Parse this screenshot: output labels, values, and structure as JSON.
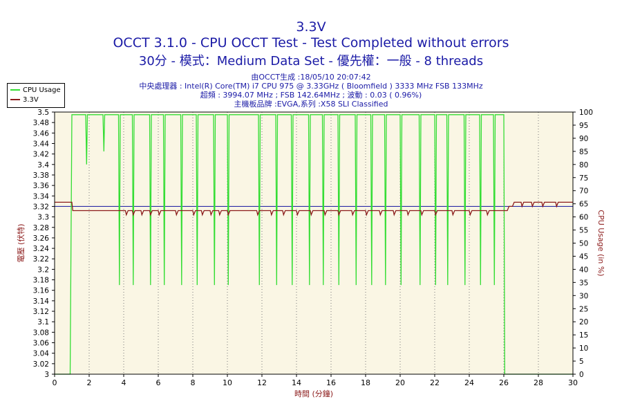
{
  "header": {
    "title_line1": "3.3V",
    "title_line2": "OCCT 3.1.0 - CPU OCCT Test - Test Completed without errors",
    "title_line3": "30分 - 模式：Medium Data Set - 優先權：一般 - 8 threads"
  },
  "info": {
    "line1": "由OCCT生成 :18/05/10 20:07:42",
    "line2": "中央處理器 : Intel(R) Core(TM) i7 CPU 975 @ 3.33GHz ( Bloomfield ) 3333 MHz FSB 133MHz",
    "line3": "超頻 : 3994.07 MHz ; FSB 142.64MHz ; 波動 : 0.03 ( 0.96%)",
    "line4": "主機板品牌 :EVGA,系列 :X58 SLI Classified"
  },
  "colors": {
    "plot_background": "#faf6e4",
    "cpu_usage": "#33dd33",
    "voltage": "#8b1a1a",
    "reference_line": "#2a2aa6",
    "title_text": "#1a1aa6"
  },
  "chart_data": {
    "type": "line",
    "xlabel": "時間 (分鐘)",
    "ylabel_left": "電壓 (伏特)",
    "ylabel_right": "CPU Usage (in %)",
    "xlim": [
      0,
      30
    ],
    "ylim_left": [
      3.0,
      3.5
    ],
    "ylim_right": [
      0,
      100
    ],
    "x_ticks": [
      "0",
      "2",
      "4",
      "6",
      "8",
      "10",
      "12",
      "14",
      "16",
      "18",
      "20",
      "22",
      "24",
      "26",
      "28",
      "30"
    ],
    "y_left_ticks": [
      "3",
      "3.02",
      "3.04",
      "3.06",
      "3.08",
      "3.1",
      "3.12",
      "3.14",
      "3.16",
      "3.18",
      "3.2",
      "3.22",
      "3.24",
      "3.26",
      "3.28",
      "3.3",
      "3.32",
      "3.34",
      "3.36",
      "3.38",
      "3.4",
      "3.42",
      "3.44",
      "3.46",
      "3.48",
      "3.5"
    ],
    "y_right_ticks": [
      "0",
      "5",
      "10",
      "15",
      "20",
      "25",
      "30",
      "35",
      "40",
      "45",
      "50",
      "55",
      "60",
      "65",
      "70",
      "75",
      "80",
      "85",
      "90",
      "95",
      "100"
    ],
    "grid": "vertical dotted",
    "legend_position": "top-left",
    "reference_line": {
      "axis": "left",
      "value": 3.32
    },
    "series": [
      {
        "name": "CPU Usage",
        "axis": "right",
        "baseline": 99,
        "points": [
          [
            0,
            0
          ],
          [
            0.9,
            0
          ],
          [
            1.0,
            99
          ],
          [
            1.8,
            99
          ],
          [
            1.85,
            80
          ],
          [
            1.9,
            99
          ],
          [
            2.8,
            99
          ],
          [
            2.85,
            85
          ],
          [
            2.9,
            99
          ],
          [
            3.7,
            99
          ],
          [
            3.75,
            34
          ],
          [
            3.8,
            99
          ],
          [
            4.5,
            99
          ],
          [
            4.55,
            34
          ],
          [
            4.6,
            99
          ],
          [
            5.5,
            99
          ],
          [
            5.55,
            34
          ],
          [
            5.6,
            99
          ],
          [
            6.3,
            99
          ],
          [
            6.35,
            34
          ],
          [
            6.4,
            99
          ],
          [
            7.3,
            99
          ],
          [
            7.35,
            34
          ],
          [
            7.4,
            99
          ],
          [
            8.2,
            99
          ],
          [
            8.25,
            34
          ],
          [
            8.3,
            99
          ],
          [
            9.2,
            99
          ],
          [
            9.25,
            34
          ],
          [
            9.3,
            99
          ],
          [
            10.0,
            99
          ],
          [
            10.05,
            34
          ],
          [
            10.1,
            99
          ],
          [
            11.8,
            99
          ],
          [
            11.85,
            34
          ],
          [
            11.9,
            99
          ],
          [
            12.8,
            99
          ],
          [
            12.85,
            34
          ],
          [
            12.9,
            99
          ],
          [
            13.7,
            99
          ],
          [
            13.75,
            34
          ],
          [
            13.8,
            99
          ],
          [
            14.7,
            99
          ],
          [
            14.75,
            34
          ],
          [
            14.8,
            99
          ],
          [
            15.5,
            99
          ],
          [
            15.55,
            34
          ],
          [
            15.6,
            99
          ],
          [
            16.4,
            99
          ],
          [
            16.45,
            34
          ],
          [
            16.5,
            99
          ],
          [
            17.4,
            99
          ],
          [
            17.45,
            34
          ],
          [
            17.5,
            99
          ],
          [
            18.3,
            99
          ],
          [
            18.35,
            34
          ],
          [
            18.4,
            99
          ],
          [
            19.1,
            99
          ],
          [
            19.15,
            34
          ],
          [
            19.2,
            99
          ],
          [
            20.0,
            99
          ],
          [
            20.05,
            34
          ],
          [
            20.1,
            99
          ],
          [
            21.1,
            99
          ],
          [
            21.15,
            34
          ],
          [
            21.2,
            99
          ],
          [
            22.0,
            99
          ],
          [
            22.05,
            34
          ],
          [
            22.1,
            99
          ],
          [
            22.7,
            99
          ],
          [
            22.75,
            34
          ],
          [
            22.8,
            99
          ],
          [
            23.7,
            99
          ],
          [
            23.75,
            34
          ],
          [
            23.8,
            99
          ],
          [
            24.6,
            99
          ],
          [
            24.65,
            34
          ],
          [
            24.7,
            99
          ],
          [
            25.4,
            99
          ],
          [
            25.45,
            34
          ],
          [
            25.5,
            99
          ],
          [
            26.0,
            99
          ],
          [
            26.05,
            0
          ],
          [
            30,
            0
          ]
        ]
      },
      {
        "name": "3.3V",
        "axis": "left",
        "points": [
          [
            0,
            3.328
          ],
          [
            1.0,
            3.328
          ],
          [
            1.05,
            3.312
          ],
          [
            4.1,
            3.312
          ],
          [
            4.15,
            3.304
          ],
          [
            4.25,
            3.312
          ],
          [
            4.5,
            3.312
          ],
          [
            4.55,
            3.304
          ],
          [
            4.65,
            3.312
          ],
          [
            5.0,
            3.312
          ],
          [
            5.05,
            3.304
          ],
          [
            5.15,
            3.312
          ],
          [
            5.5,
            3.312
          ],
          [
            5.55,
            3.304
          ],
          [
            5.65,
            3.312
          ],
          [
            6.0,
            3.312
          ],
          [
            6.05,
            3.304
          ],
          [
            6.15,
            3.312
          ],
          [
            7.0,
            3.312
          ],
          [
            7.05,
            3.304
          ],
          [
            7.15,
            3.312
          ],
          [
            8.0,
            3.312
          ],
          [
            8.05,
            3.304
          ],
          [
            8.15,
            3.312
          ],
          [
            8.5,
            3.312
          ],
          [
            8.55,
            3.304
          ],
          [
            8.65,
            3.312
          ],
          [
            9.0,
            3.312
          ],
          [
            9.05,
            3.304
          ],
          [
            9.15,
            3.312
          ],
          [
            9.5,
            3.312
          ],
          [
            9.55,
            3.304
          ],
          [
            9.65,
            3.312
          ],
          [
            10.0,
            3.312
          ],
          [
            10.05,
            3.304
          ],
          [
            10.15,
            3.312
          ],
          [
            11.7,
            3.312
          ],
          [
            11.75,
            3.304
          ],
          [
            11.85,
            3.312
          ],
          [
            12.5,
            3.312
          ],
          [
            12.55,
            3.304
          ],
          [
            12.65,
            3.312
          ],
          [
            13.2,
            3.312
          ],
          [
            13.25,
            3.304
          ],
          [
            13.35,
            3.312
          ],
          [
            14.0,
            3.312
          ],
          [
            14.05,
            3.304
          ],
          [
            14.15,
            3.312
          ],
          [
            14.8,
            3.312
          ],
          [
            14.85,
            3.304
          ],
          [
            14.95,
            3.312
          ],
          [
            15.6,
            3.312
          ],
          [
            15.65,
            3.304
          ],
          [
            15.75,
            3.312
          ],
          [
            16.4,
            3.312
          ],
          [
            16.45,
            3.304
          ],
          [
            16.55,
            3.312
          ],
          [
            17.2,
            3.312
          ],
          [
            17.25,
            3.304
          ],
          [
            17.35,
            3.312
          ],
          [
            18.0,
            3.312
          ],
          [
            18.05,
            3.304
          ],
          [
            18.15,
            3.312
          ],
          [
            18.8,
            3.312
          ],
          [
            18.85,
            3.304
          ],
          [
            18.95,
            3.312
          ],
          [
            19.6,
            3.312
          ],
          [
            19.65,
            3.304
          ],
          [
            19.75,
            3.312
          ],
          [
            20.4,
            3.312
          ],
          [
            20.45,
            3.304
          ],
          [
            20.55,
            3.312
          ],
          [
            21.2,
            3.312
          ],
          [
            21.25,
            3.304
          ],
          [
            21.35,
            3.312
          ],
          [
            22.0,
            3.312
          ],
          [
            22.05,
            3.304
          ],
          [
            22.15,
            3.312
          ],
          [
            23.0,
            3.312
          ],
          [
            23.05,
            3.304
          ],
          [
            23.15,
            3.312
          ],
          [
            24.0,
            3.312
          ],
          [
            24.05,
            3.304
          ],
          [
            24.15,
            3.312
          ],
          [
            25.0,
            3.312
          ],
          [
            25.05,
            3.304
          ],
          [
            25.15,
            3.312
          ],
          [
            26.2,
            3.312
          ],
          [
            26.3,
            3.32
          ],
          [
            26.5,
            3.32
          ],
          [
            26.6,
            3.328
          ],
          [
            27.0,
            3.328
          ],
          [
            27.05,
            3.32
          ],
          [
            27.15,
            3.328
          ],
          [
            27.6,
            3.328
          ],
          [
            27.65,
            3.32
          ],
          [
            27.75,
            3.328
          ],
          [
            28.2,
            3.328
          ],
          [
            28.25,
            3.32
          ],
          [
            28.35,
            3.328
          ],
          [
            29.0,
            3.328
          ],
          [
            29.05,
            3.32
          ],
          [
            29.15,
            3.328
          ],
          [
            30,
            3.328
          ]
        ]
      }
    ]
  }
}
